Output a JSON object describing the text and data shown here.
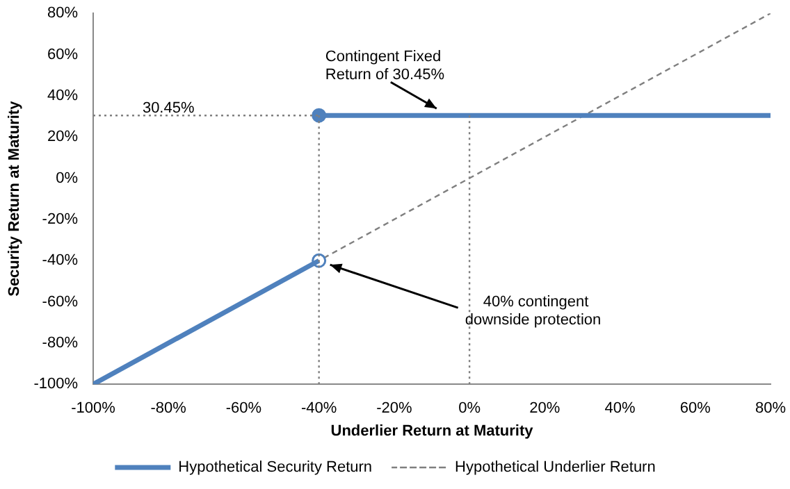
{
  "chart_data": {
    "type": "line",
    "xlabel": "Underlier Return at Maturity",
    "ylabel": "Security Return at Maturity",
    "xlim": [
      -100,
      80
    ],
    "xticks": [
      {
        "value": -100,
        "label": "-100%"
      },
      {
        "value": -80,
        "label": "-80%"
      },
      {
        "value": -60,
        "label": "-60%"
      },
      {
        "value": -40,
        "label": "-40%"
      },
      {
        "value": -20,
        "label": "-20%"
      },
      {
        "value": 0,
        "label": "0%"
      },
      {
        "value": 20,
        "label": "20%"
      },
      {
        "value": 40,
        "label": "40%"
      },
      {
        "value": 60,
        "label": "60%"
      },
      {
        "value": 80,
        "label": "80%"
      }
    ],
    "ylim": [
      -100,
      80
    ],
    "yticks": [
      {
        "value": -100,
        "label": "-100%"
      },
      {
        "value": -80,
        "label": "-80%"
      },
      {
        "value": -60,
        "label": "-60%"
      },
      {
        "value": -40,
        "label": "-40%"
      },
      {
        "value": -20,
        "label": "-20%"
      },
      {
        "value": 0,
        "label": "0%"
      },
      {
        "value": 20,
        "label": "20%"
      },
      {
        "value": 40,
        "label": "40%"
      },
      {
        "value": 60,
        "label": "60%"
      },
      {
        "value": 80,
        "label": "80%"
      }
    ],
    "grid": false,
    "legend": "bottom",
    "series": [
      {
        "color": "#7f7f7f",
        "x": [
          -40,
          -40
        ],
        "values": [
          30.45,
          -100
        ],
        "line_style": "dotted",
        "marker": "none"
      },
      {
        "color": "#7f7f7f",
        "x": [
          0,
          0
        ],
        "values": [
          30.45,
          -100
        ],
        "line_style": "dotted",
        "marker": "none"
      },
      {
        "color": "#7f7f7f",
        "x": [
          -100,
          -40
        ],
        "values": [
          30.45,
          30.45
        ],
        "line_style": "dotted",
        "marker": "none"
      },
      {
        "name": "Hypothetical Security Return",
        "color": "#4f81bd",
        "x": [
          -100,
          -40
        ],
        "values": [
          -100,
          -40
        ],
        "line_style": "solid",
        "marker": "none"
      },
      {
        "color": "#4f81bd",
        "x": [
          -40,
          80
        ],
        "values": [
          30.45,
          30.45
        ],
        "line_style": "solid",
        "marker": "none"
      },
      {
        "type": "scatter",
        "color": "#4f81bd",
        "colors": [
          "#ffffff",
          "#4f81bd"
        ],
        "x": [
          -40,
          -40
        ],
        "values": [
          -40,
          30.45
        ],
        "marker": "circle"
      },
      {
        "name": "Hypothetical Underlier Return",
        "color": "#7f7f7f",
        "x": [
          -100,
          80
        ],
        "values": [
          -100,
          80
        ],
        "line_style": "dashed",
        "marker": "none"
      }
    ],
    "annotations": [
      {
        "text": "30.45%",
        "x": -80,
        "y": 30.45
      },
      {
        "text": "Contingent Fixed Return of 30.45%",
        "x": -8,
        "y": 30.45
      },
      {
        "text": "40% contingent downside protection",
        "x": -40,
        "y": -40
      }
    ]
  }
}
